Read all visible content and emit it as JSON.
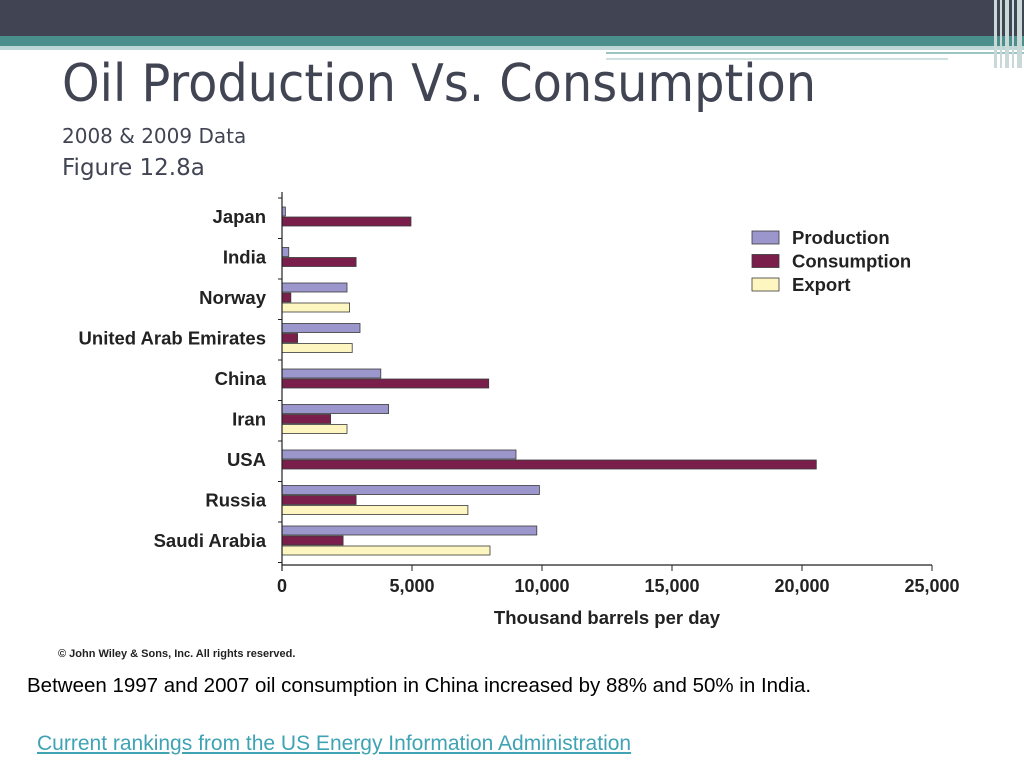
{
  "slide": {
    "title": "Oil Production Vs. Consumption",
    "subtitle": "2008 & 2009 Data",
    "figure_label": "Figure 12.8a",
    "copyright": "© John Wiley & Sons, Inc. All rights reserved.",
    "note": "Between 1997 and 2007 oil consumption in China increased by 88% and 50% in India.",
    "link_text": "Current rankings from the US Energy Information Administration"
  },
  "colors": {
    "header_dark": "#414453",
    "header_teal": "#4a8f8c",
    "production": "#9b96cc",
    "consumption": "#7a1f4b",
    "export": "#fdf6c0",
    "link": "#3fa3b4"
  },
  "chart_data": {
    "type": "bar",
    "orientation": "horizontal",
    "categories": [
      "Japan",
      "India",
      "Norway",
      "United Arab Emirates",
      "China",
      "Iran",
      "USA",
      "Russia",
      "Saudi Arabia"
    ],
    "series": [
      {
        "name": "Production",
        "values": [
          130,
          260,
          2500,
          3000,
          3800,
          4100,
          9000,
          9900,
          9800
        ]
      },
      {
        "name": "Consumption",
        "values": [
          4960,
          2850,
          340,
          600,
          7950,
          1870,
          20550,
          2850,
          2350
        ]
      },
      {
        "name": "Export",
        "values": [
          null,
          null,
          2600,
          2700,
          null,
          2500,
          null,
          7150,
          8000
        ]
      }
    ],
    "xlabel": "Thousand barrels per day",
    "xlim": [
      0,
      25000
    ],
    "xticks": [
      "0",
      "5,000",
      "10,000",
      "15,000",
      "20,000",
      "25,000"
    ],
    "legend": [
      "Production",
      "Consumption",
      "Export"
    ],
    "legend_position": "top-right",
    "grid": false
  }
}
